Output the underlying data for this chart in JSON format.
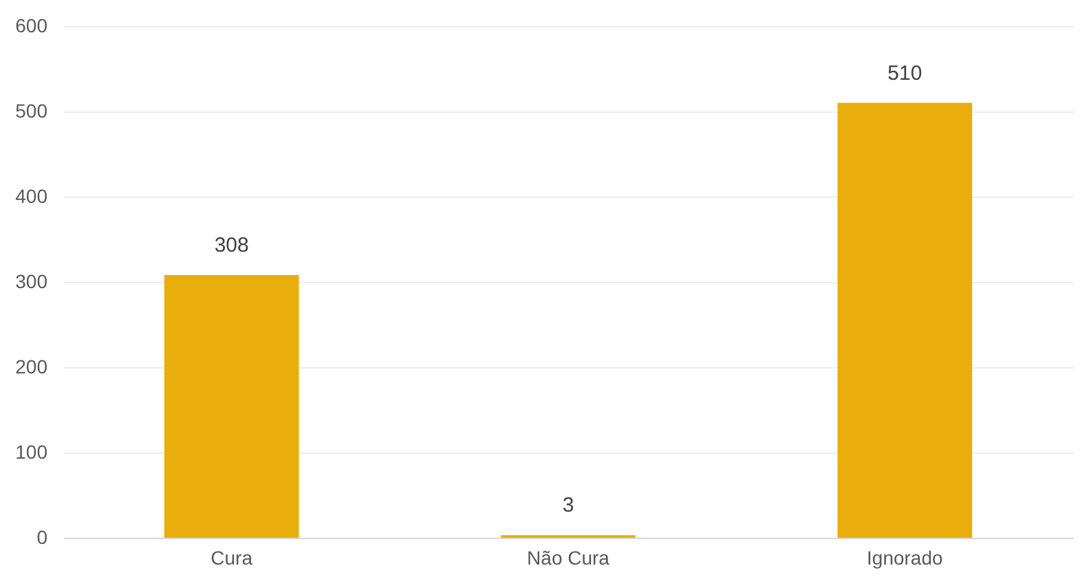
{
  "chart_data": {
    "type": "bar",
    "categories": [
      "Cura",
      "Não Cura",
      "Ignorado"
    ],
    "values": [
      308,
      3,
      510
    ],
    "color": "#eaae0c",
    "ylim": [
      0,
      600
    ],
    "yticks": [
      0,
      100,
      200,
      300,
      400,
      500,
      600
    ],
    "grid": "y",
    "data_labels": true
  }
}
